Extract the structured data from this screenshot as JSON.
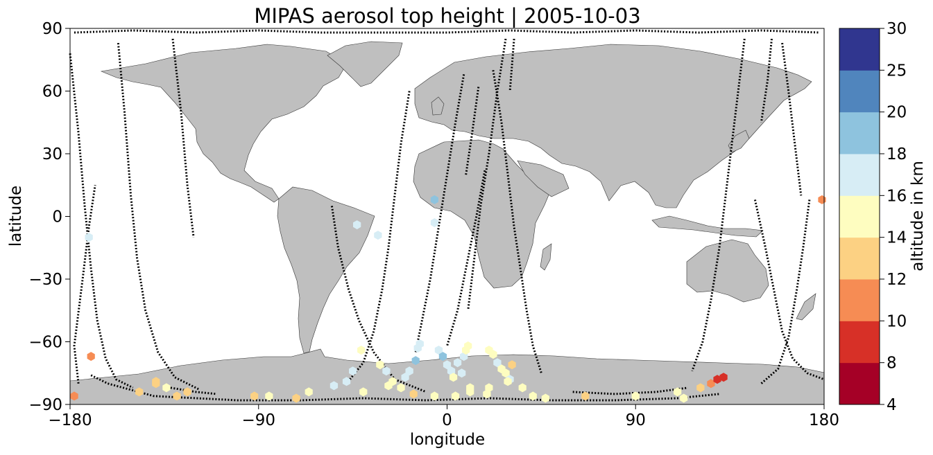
{
  "chart_data": {
    "type": "scatter",
    "title": "MIPAS aerosol top height | 2005-10-03",
    "xlabel": "longitude",
    "ylabel": "latitude",
    "xlim": [
      -180,
      180
    ],
    "ylim": [
      -90,
      90
    ],
    "xticks": [
      -180,
      -90,
      0,
      90,
      180
    ],
    "xtick_labels": [
      "−180",
      "−90",
      "0",
      "90",
      "180"
    ],
    "yticks": [
      -90,
      -60,
      -30,
      0,
      30,
      60,
      90
    ],
    "ytick_labels": [
      "−90",
      "−60",
      "−30",
      "0",
      "30",
      "60",
      "90"
    ],
    "basemap": "world coastlines with gray land",
    "colorbar": {
      "label": "altitude in km",
      "bounds": [
        4,
        8,
        10,
        12,
        14,
        16,
        18,
        20,
        25,
        30
      ],
      "tick_labels": [
        "4",
        "8",
        "10",
        "12",
        "14",
        "16",
        "18",
        "20",
        "25",
        "30"
      ],
      "colors": [
        "#a50026",
        "#d73027",
        "#f46d43",
        "#fdae61",
        "#fee090",
        "#ffffbf",
        "#e0f3f8",
        "#abd9e9",
        "#74add1",
        "#4575b4",
        "#313695"
      ],
      "bin_colors": [
        "#a50026",
        "#d73027",
        "#f68c54",
        "#fcd183",
        "#fefdc0",
        "#d7edf5",
        "#8ec3de",
        "#5085bd",
        "#30368f"
      ]
    },
    "orbit_track_color": "#000000",
    "orbit_tracks": [
      [
        [
          -180,
          78
        ],
        [
          -176,
          40
        ],
        [
          -173,
          5
        ],
        [
          -170,
          -25
        ],
        [
          -167,
          -50
        ],
        [
          -163,
          -68
        ],
        [
          -158,
          -78
        ],
        [
          -150,
          -82
        ]
      ],
      [
        [
          -157,
          83
        ],
        [
          -154,
          50
        ],
        [
          -151,
          10
        ],
        [
          -148,
          -20
        ],
        [
          -144,
          -45
        ],
        [
          -138,
          -65
        ],
        [
          -130,
          -77
        ],
        [
          -118,
          -83
        ]
      ],
      [
        [
          -131,
          85
        ],
        [
          -127,
          50
        ],
        [
          -124,
          15
        ],
        [
          -121,
          -10
        ]
      ],
      [
        [
          -176,
          -80
        ],
        [
          -178,
          -62
        ],
        [
          -174,
          -30
        ],
        [
          -171,
          -5
        ],
        [
          -168,
          15
        ]
      ],
      [
        [
          -170,
          -76
        ],
        [
          -162,
          -80
        ],
        [
          -140,
          -86
        ],
        [
          -100,
          -88
        ],
        [
          -70,
          -88
        ],
        [
          -40,
          -87
        ],
        [
          -10,
          -88
        ],
        [
          20,
          -87
        ],
        [
          50,
          -88
        ],
        [
          80,
          -88
        ],
        [
          110,
          -87
        ],
        [
          130,
          -85
        ]
      ],
      [
        [
          -178,
          88
        ],
        [
          -150,
          89
        ],
        [
          -120,
          88
        ],
        [
          -90,
          89
        ],
        [
          -60,
          88
        ],
        [
          -30,
          88
        ],
        [
          0,
          88
        ],
        [
          30,
          89
        ],
        [
          60,
          88
        ],
        [
          90,
          89
        ],
        [
          120,
          88
        ],
        [
          150,
          89
        ],
        [
          178,
          88
        ]
      ],
      [
        [
          -55,
          5
        ],
        [
          -52,
          -15
        ],
        [
          -47,
          -35
        ],
        [
          -42,
          -50
        ],
        [
          -35,
          -65
        ],
        [
          -25,
          -78
        ],
        [
          -10,
          -84
        ]
      ],
      [
        [
          -18,
          60
        ],
        [
          -22,
          35
        ],
        [
          -25,
          10
        ],
        [
          -28,
          -15
        ],
        [
          -31,
          -35
        ],
        [
          -35,
          -55
        ],
        [
          -40,
          -70
        ],
        [
          -48,
          -80
        ]
      ],
      [
        [
          8,
          68
        ],
        [
          4,
          45
        ],
        [
          0,
          20
        ],
        [
          -4,
          -5
        ],
        [
          -8,
          -30
        ],
        [
          -12,
          -50
        ],
        [
          -15,
          -65
        ]
      ],
      [
        [
          15,
          62
        ],
        [
          12,
          40
        ],
        [
          9,
          20
        ]
      ],
      [
        [
          22,
          70
        ],
        [
          26,
          45
        ],
        [
          29,
          20
        ],
        [
          32,
          -5
        ],
        [
          35,
          -25
        ],
        [
          38,
          -45
        ],
        [
          41,
          -62
        ],
        [
          45,
          -75
        ]
      ],
      [
        [
          28,
          85
        ],
        [
          24,
          60
        ],
        [
          20,
          30
        ],
        [
          16,
          5
        ],
        [
          13,
          -20
        ],
        [
          10,
          -45
        ]
      ],
      [
        [
          32,
          85
        ],
        [
          30,
          60
        ]
      ],
      [
        [
          18,
          22
        ],
        [
          14,
          0
        ],
        [
          10,
          -20
        ],
        [
          5,
          -45
        ],
        [
          0,
          -62
        ]
      ],
      [
        [
          142,
          85
        ],
        [
          139,
          60
        ],
        [
          136,
          35
        ],
        [
          133,
          10
        ],
        [
          130,
          -15
        ],
        [
          126,
          -40
        ],
        [
          122,
          -60
        ],
        [
          117,
          -74
        ]
      ],
      [
        [
          147,
          8
        ],
        [
          152,
          -15
        ],
        [
          156,
          -35
        ],
        [
          160,
          -55
        ],
        [
          165,
          -68
        ],
        [
          172,
          -75
        ],
        [
          180,
          -78
        ]
      ],
      [
        [
          160,
          83
        ],
        [
          163,
          60
        ],
        [
          166,
          35
        ],
        [
          169,
          10
        ]
      ],
      [
        [
          173,
          8
        ],
        [
          170,
          -15
        ],
        [
          167,
          -35
        ],
        [
          163,
          -58
        ],
        [
          158,
          -73
        ],
        [
          150,
          -80
        ]
      ],
      [
        [
          155,
          85
        ],
        [
          153,
          65
        ],
        [
          150,
          45
        ]
      ],
      [
        [
          -132,
          -82
        ],
        [
          -120,
          -84
        ],
        [
          -110,
          -85
        ]
      ],
      [
        [
          60,
          -84
        ],
        [
          80,
          -85
        ],
        [
          100,
          -84
        ],
        [
          115,
          -82
        ]
      ]
    ],
    "points": [
      {
        "x": -171,
        "y": -10,
        "z": 17
      },
      {
        "x": -178,
        "y": -86,
        "z": 11
      },
      {
        "x": -170,
        "y": -67,
        "z": 11
      },
      {
        "x": -139,
        "y": -79,
        "z": 13
      },
      {
        "x": -134,
        "y": -82,
        "z": 15
      },
      {
        "x": -129,
        "y": -86,
        "z": 13
      },
      {
        "x": -124,
        "y": -84,
        "z": 13
      },
      {
        "x": -139,
        "y": -80,
        "z": 13
      },
      {
        "x": -147,
        "y": -84,
        "z": 13
      },
      {
        "x": -92,
        "y": -86,
        "z": 13
      },
      {
        "x": -85,
        "y": -86,
        "z": 15
      },
      {
        "x": -72,
        "y": -87,
        "z": 13
      },
      {
        "x": -66,
        "y": -84,
        "z": 15
      },
      {
        "x": -54,
        "y": -81,
        "z": 17
      },
      {
        "x": -48,
        "y": -79,
        "z": 17
      },
      {
        "x": -45,
        "y": -74,
        "z": 17
      },
      {
        "x": -40,
        "y": -84,
        "z": 15
      },
      {
        "x": -41,
        "y": -64,
        "z": 15
      },
      {
        "x": -43,
        "y": -4,
        "z": 17
      },
      {
        "x": -33,
        "y": -9,
        "z": 17
      },
      {
        "x": -32,
        "y": -71,
        "z": 15
      },
      {
        "x": -29,
        "y": -74,
        "z": 17
      },
      {
        "x": -28,
        "y": -81,
        "z": 15
      },
      {
        "x": -26,
        "y": -79,
        "z": 15
      },
      {
        "x": -22,
        "y": -82,
        "z": 15
      },
      {
        "x": -20,
        "y": -77,
        "z": 17
      },
      {
        "x": -18,
        "y": -74,
        "z": 17
      },
      {
        "x": -15,
        "y": -69,
        "z": 19
      },
      {
        "x": -14,
        "y": -63,
        "z": 17
      },
      {
        "x": -13,
        "y": -61,
        "z": 17
      },
      {
        "x": -16,
        "y": -85,
        "z": 13
      },
      {
        "x": -6,
        "y": -86,
        "z": 15
      },
      {
        "x": -6,
        "y": 8,
        "z": 19
      },
      {
        "x": -6,
        "y": -3,
        "z": 17
      },
      {
        "x": -4,
        "y": -64,
        "z": 17
      },
      {
        "x": -2,
        "y": -67,
        "z": 19
      },
      {
        "x": 0,
        "y": -71,
        "z": 17
      },
      {
        "x": 2,
        "y": -74,
        "z": 17
      },
      {
        "x": 3,
        "y": -77,
        "z": 15
      },
      {
        "x": 5,
        "y": -70,
        "z": 17
      },
      {
        "x": 7,
        "y": -75,
        "z": 17
      },
      {
        "x": 8,
        "y": -67,
        "z": 17
      },
      {
        "x": 9,
        "y": -64,
        "z": 15
      },
      {
        "x": 10,
        "y": -62,
        "z": 15
      },
      {
        "x": 4,
        "y": -86,
        "z": 15
      },
      {
        "x": 11,
        "y": -82,
        "z": 15
      },
      {
        "x": 11,
        "y": -84,
        "z": 15
      },
      {
        "x": 20,
        "y": -64,
        "z": 15
      },
      {
        "x": 22,
        "y": -66,
        "z": 15
      },
      {
        "x": 24,
        "y": -70,
        "z": 17
      },
      {
        "x": 26,
        "y": -73,
        "z": 15
      },
      {
        "x": 28,
        "y": -75,
        "z": 15
      },
      {
        "x": 30,
        "y": -78,
        "z": 17
      },
      {
        "x": 31,
        "y": -71,
        "z": 13
      },
      {
        "x": 29,
        "y": -79,
        "z": 15
      },
      {
        "x": 20,
        "y": -82,
        "z": 15
      },
      {
        "x": 19,
        "y": -85,
        "z": 15
      },
      {
        "x": 36,
        "y": -82,
        "z": 15
      },
      {
        "x": 41,
        "y": -86,
        "z": 15
      },
      {
        "x": 47,
        "y": -87,
        "z": 15
      },
      {
        "x": 66,
        "y": -86,
        "z": 13
      },
      {
        "x": 90,
        "y": -86,
        "z": 15
      },
      {
        "x": 110,
        "y": -84,
        "z": 15
      },
      {
        "x": 113,
        "y": -87,
        "z": 15
      },
      {
        "x": 121,
        "y": -82,
        "z": 13
      },
      {
        "x": 126,
        "y": -80,
        "z": 11
      },
      {
        "x": 129,
        "y": -78,
        "z": 9
      },
      {
        "x": 132,
        "y": -77,
        "z": 9
      },
      {
        "x": 179,
        "y": 8,
        "z": 11
      }
    ]
  }
}
